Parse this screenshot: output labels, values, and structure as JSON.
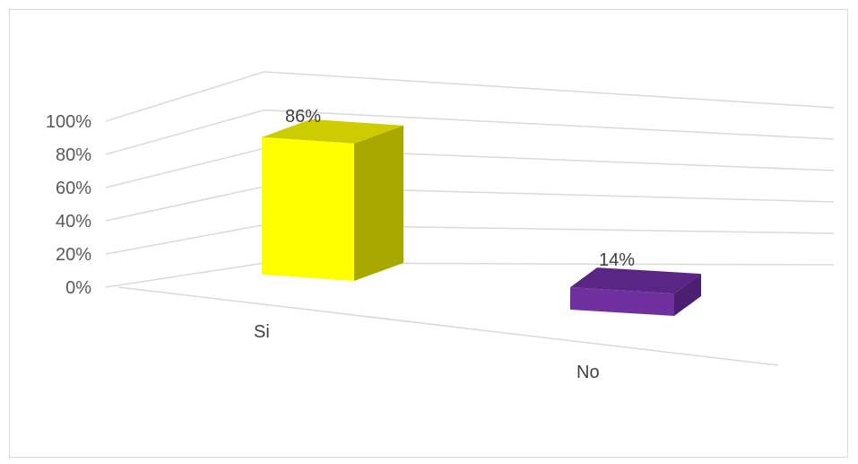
{
  "chart_data": {
    "type": "bar",
    "style": "3d-column",
    "categories": [
      "Si",
      "No"
    ],
    "values": [
      86,
      14
    ],
    "data_labels": [
      "86%",
      "14%"
    ],
    "ylim": [
      0,
      100
    ],
    "y_ticks": [
      "0%",
      "20%",
      "40%",
      "60%",
      "80%",
      "100%"
    ],
    "grid": true,
    "legend": "none",
    "colors": {
      "Si": {
        "front": "#ffff00",
        "side": "#a8a800",
        "top": "#cccc00"
      },
      "No": {
        "front": "#7030a0",
        "side": "#4c2070",
        "top": "#5a2685"
      }
    },
    "gridline_color": "#d9d9d9",
    "text_color": "#595959"
  }
}
